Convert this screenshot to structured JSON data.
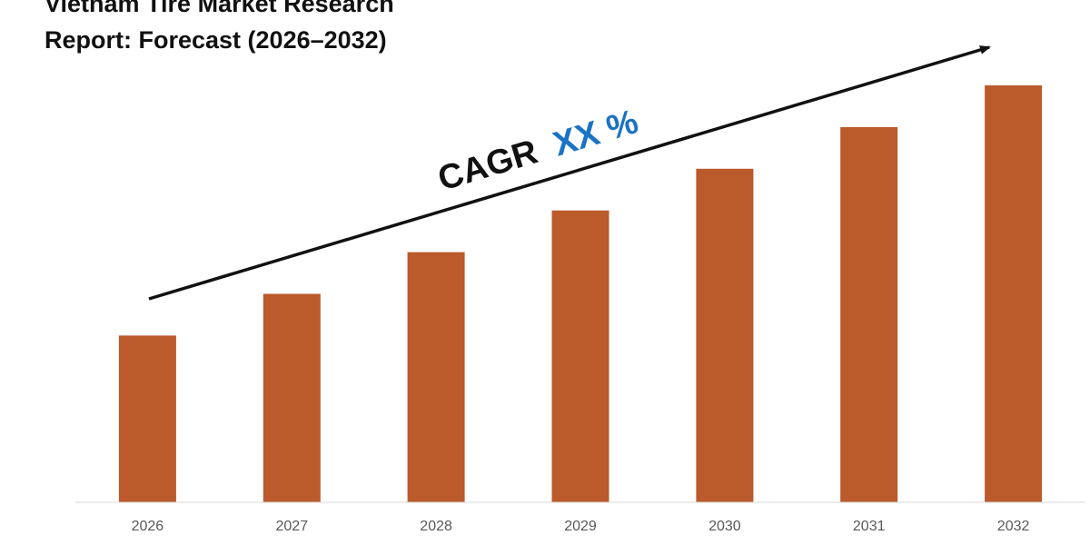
{
  "chart_data": {
    "type": "bar",
    "title_line1": "Vietnam Tire Market Research",
    "title_line2": "Report: Forecast (2026–2032)",
    "categories": [
      "2026",
      "2027",
      "2028",
      "2029",
      "2030",
      "2031",
      "2032"
    ],
    "values": [
      40,
      50,
      60,
      70,
      80,
      90,
      100
    ],
    "ylim": [
      0,
      100
    ],
    "xlabel": "",
    "ylabel": "",
    "grid": false,
    "bar_color": "#bb5a2b",
    "annotation": {
      "prefix": "CAGR",
      "value": "XX %",
      "prefix_color": "#111111",
      "value_color": "#1a73c4"
    }
  }
}
